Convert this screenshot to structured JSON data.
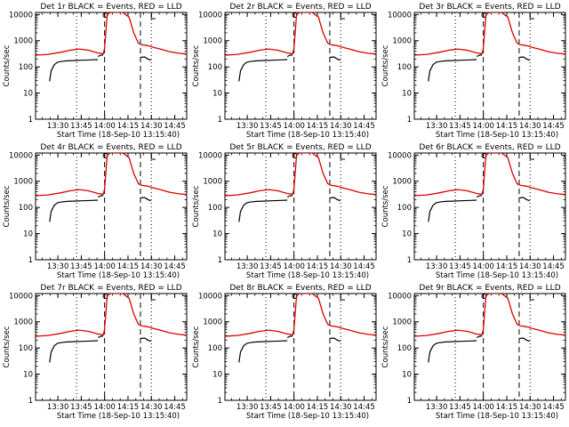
{
  "figure": {
    "panel_titles": [
      "Det 1r BLACK = Events, RED = LLD",
      "Det 2r BLACK = Events, RED = LLD",
      "Det 3r BLACK = Events, RED = LLD",
      "Det 4r BLACK = Events, RED = LLD",
      "Det 5r BLACK = Events, RED = LLD",
      "Det 6r BLACK = Events, RED = LLD",
      "Det 7r BLACK = Events, RED = LLD",
      "Det 8r BLACK = Events, RED = LLD",
      "Det 9r BLACK = Events, RED = LLD"
    ],
    "xlabel": "Start Time (18-Sep-10 13:15:40)",
    "ylabel": "Counts/sec",
    "x_tick_labels": [
      "13:30",
      "13:45",
      "14:00",
      "14:15",
      "14:30",
      "14:45"
    ],
    "y_tick_labels": [
      "1",
      "10",
      "100",
      "1000",
      "10000"
    ],
    "colors": {
      "events": "#000000",
      "lld": "#dd0000",
      "axes": "#000000"
    }
  },
  "chart_data": {
    "type": "line",
    "panels": 9,
    "y_scale": "log",
    "ylim": [
      1,
      12000
    ],
    "xlim_minutes_after_start": [
      0,
      97
    ],
    "x_ticks_minutes_after_start": [
      14.33,
      29.33,
      44.33,
      59.33,
      74.33,
      89.33
    ],
    "vertical_markers_minutes": [
      {
        "x": 26.3,
        "style": "dotted"
      },
      {
        "x": 44.3,
        "style": "dashed"
      },
      {
        "x": 67.3,
        "style": "dashed"
      },
      {
        "x": 74.3,
        "style": "dotted"
      }
    ],
    "series": [
      {
        "name": "LLD",
        "color": "#dd0000",
        "x": [
          0,
          8,
          16,
          22,
          28,
          34,
          40,
          43.5,
          44.3,
          46,
          48,
          52,
          56,
          60,
          63,
          66,
          68,
          72,
          76,
          80,
          86,
          92,
          97
        ],
        "y": [
          280,
          300,
          360,
          430,
          480,
          430,
          340,
          320,
          500,
          10000,
          12000,
          12000,
          12000,
          8000,
          2000,
          800,
          700,
          650,
          550,
          480,
          380,
          330,
          310
        ]
      },
      {
        "name": "Events",
        "color": "#000000",
        "segments": [
          {
            "x": [
              9,
              10,
              12,
              14,
              16
            ],
            "y": [
              28,
              70,
              120,
              150,
              160
            ]
          },
          {
            "x": [
              16,
              20,
              26,
              30,
              36,
              40
            ],
            "y": [
              160,
              170,
              175,
              180,
              185,
              190
            ]
          },
          {
            "x": [
              40,
              42,
              43.5
            ],
            "y": [
              250,
              280,
              290
            ]
          },
          {
            "x": [
              67.3,
              70,
              72,
              74
            ],
            "y": [
              230,
              240,
              200,
              180
            ]
          }
        ]
      }
    ]
  }
}
